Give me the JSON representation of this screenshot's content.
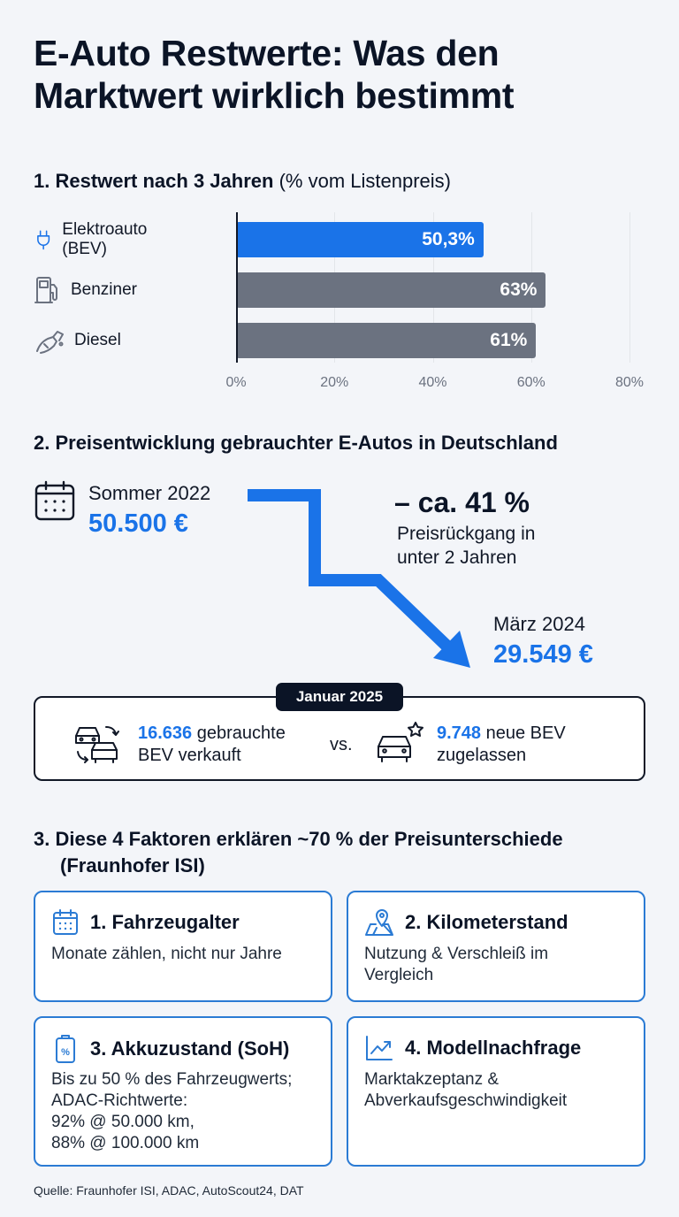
{
  "title": "E-Auto Restwerte: Was den Marktwert wirklich bestimmt",
  "section1": {
    "heading_bold": "1. Restwert nach 3 Jahren",
    "heading_light": "(% vom Listenpreis)"
  },
  "chart_data": {
    "type": "bar",
    "orientation": "horizontal",
    "categories": [
      "Elektroauto (BEV)",
      "Benziner",
      "Diesel"
    ],
    "values": [
      50.3,
      63,
      61
    ],
    "value_labels": [
      "50,3%",
      "63%",
      "61%"
    ],
    "xlim": [
      0,
      80
    ],
    "ticks": [
      "0%",
      "20%",
      "40%",
      "60%",
      "80%"
    ],
    "grid": true,
    "colors": [
      "#1a73e8",
      "#6b7280",
      "#6b7280"
    ],
    "icons": [
      "plug-icon",
      "fuel-pump-icon",
      "fuel-nozzle-icon"
    ]
  },
  "section2": {
    "heading": "2. Preisentwicklung gebrauchter E-Autos in Deutschland",
    "start_label": "Sommer 2022",
    "start_price": "50.500 €",
    "drop_main": "– ca. 41 %",
    "drop_sub_1": "Preisrückgang in",
    "drop_sub_2": "unter 2 Jahren",
    "end_label": "März 2024",
    "end_price": "29.549 €",
    "box_label": "Januar 2025",
    "left_num": "16.636",
    "left_text_1": "gebrauchte",
    "left_text_2": "BEV verkauft",
    "vs": "vs.",
    "right_num": "9.748",
    "right_text_1": "neue BEV",
    "right_text_2": "zugelassen",
    "accent": "#1a73e8"
  },
  "section3": {
    "heading_1": "3. Diese 4 Faktoren erklären ~70 % der Preisunterschiede",
    "heading_2": "(Fraunhofer ISI)",
    "cards": [
      {
        "title": "1. Fahrzeugalter",
        "lines": [
          "Monate zählen, nicht nur Jahre"
        ],
        "icon": "calendar-icon"
      },
      {
        "title": "2. Kilometerstand",
        "lines": [
          "Nutzung & Verschleiß im",
          "Vergleich"
        ],
        "icon": "map-pin-icon"
      },
      {
        "title": "3. Akkuzustand (SoH)",
        "lines": [
          "Bis zu 50 % des Fahrzeugwerts;",
          "ADAC-Richtwerte:",
          "92% @ 50.000 km,",
          "88% @ 100.000 km"
        ],
        "icon": "battery-percent-icon"
      },
      {
        "title": "4. Modellnachfrage",
        "lines": [
          "Marktakzeptanz &",
          "Abverkaufsgeschwindigkeit"
        ],
        "icon": "trend-chart-icon"
      }
    ]
  },
  "source": "Quelle: Fraunhofer ISI, ADAC, AutoScout24, DAT"
}
